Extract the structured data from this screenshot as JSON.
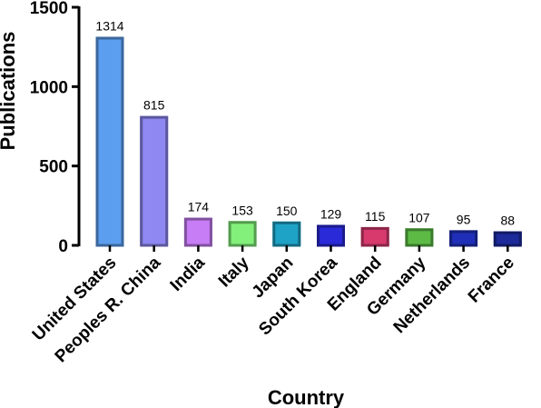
{
  "chart_data": {
    "type": "bar",
    "title": "",
    "xlabel": "Country",
    "ylabel": "Publications",
    "ylim": [
      0,
      1500
    ],
    "yticks": [
      0,
      500,
      1000,
      1500
    ],
    "grid": false,
    "categories": [
      "United States",
      "Peoples R. China",
      "India",
      "Italy",
      "Japan",
      "South Korea",
      "England",
      "Germany",
      "Netherlands",
      "France"
    ],
    "values": [
      1314,
      815,
      174,
      153,
      150,
      129,
      115,
      107,
      95,
      88
    ],
    "colors": [
      "#5b9ef0",
      "#8f88f2",
      "#c77df5",
      "#82f07a",
      "#1ea3c7",
      "#2a2ad8",
      "#d83a6e",
      "#5dbb45",
      "#1f2fb8",
      "#1c2a9a"
    ]
  }
}
